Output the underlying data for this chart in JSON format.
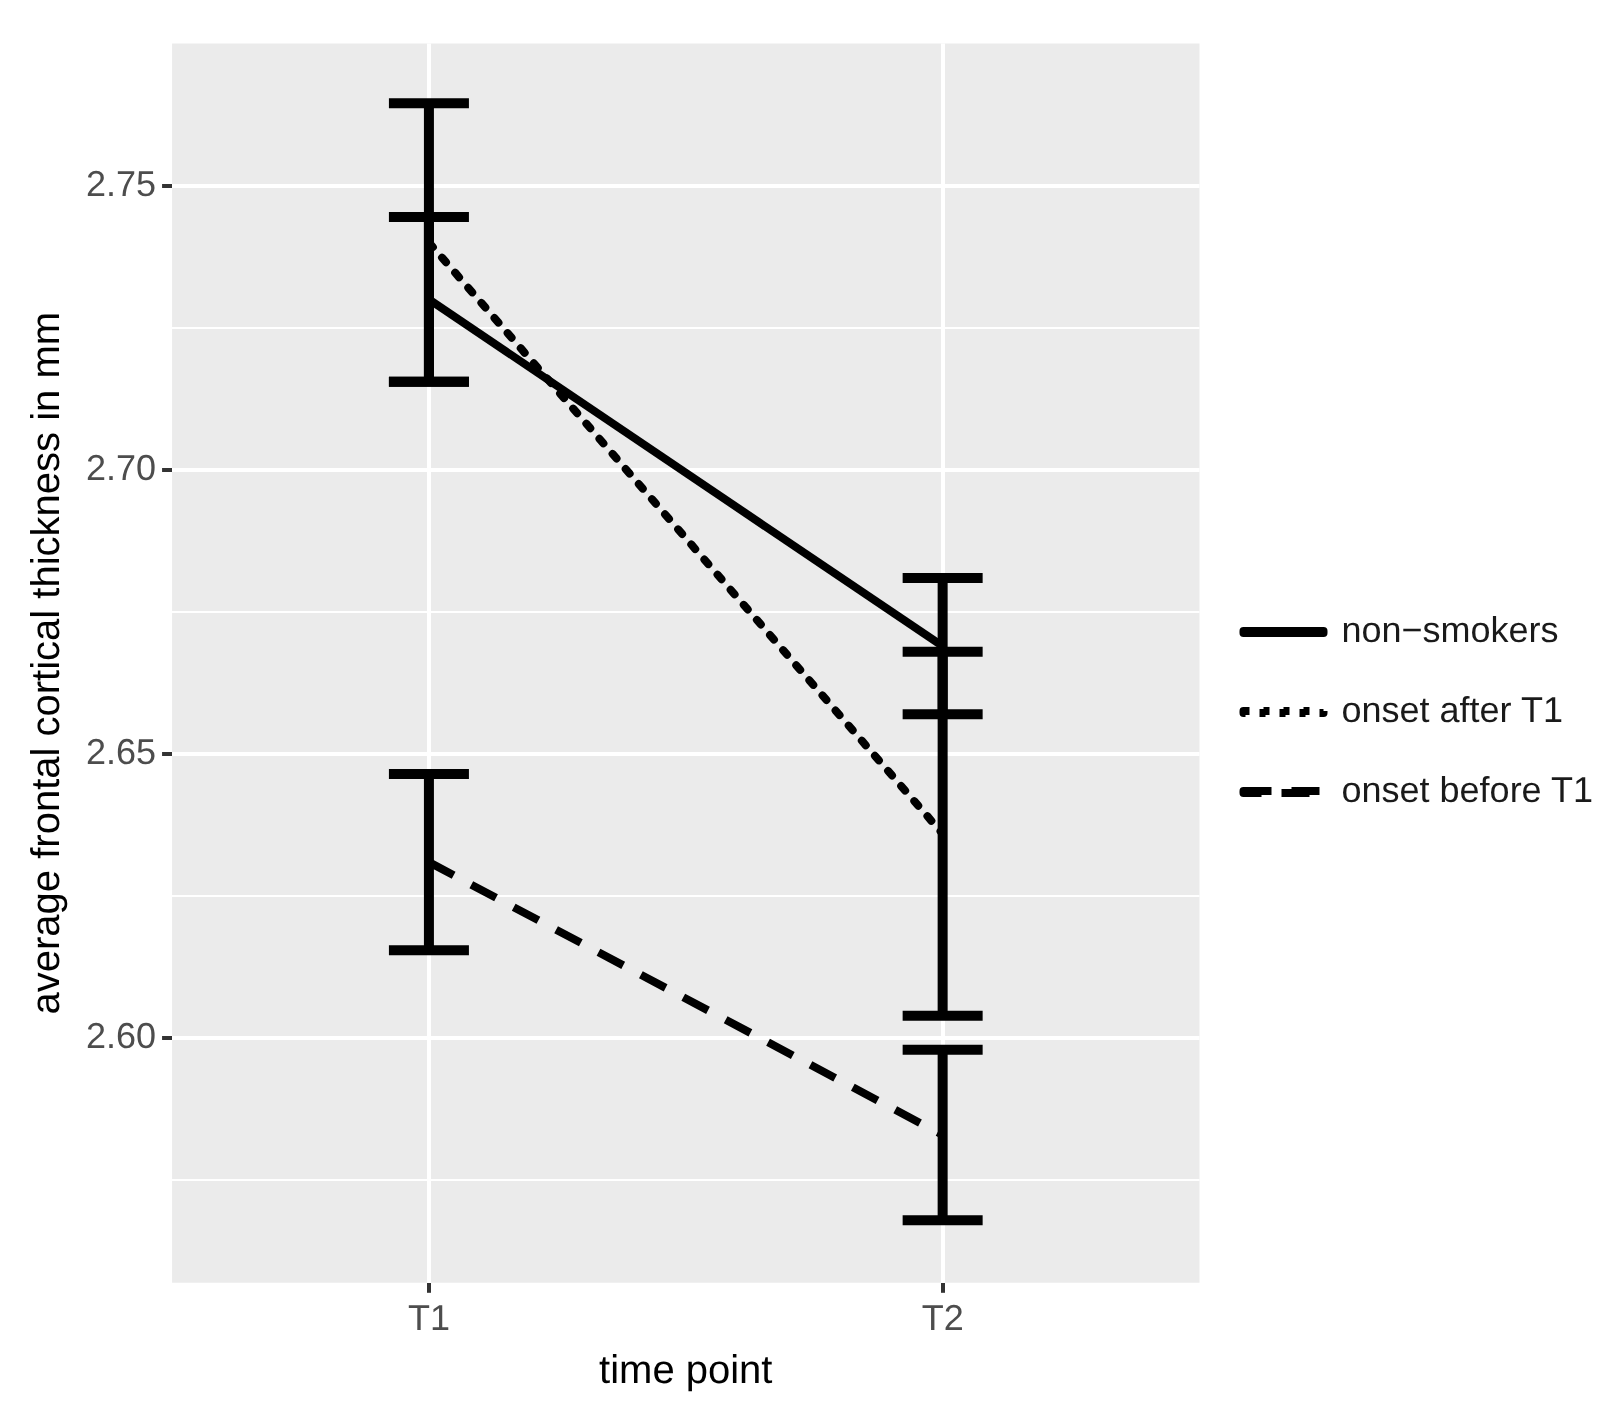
{
  "chart_data": {
    "type": "line",
    "xlabel": "time point",
    "ylabel": "average frontal cortical thickness in mm",
    "categories": [
      "T1",
      "T2"
    ],
    "series": [
      {
        "name": "non−smokers",
        "color": "#000000",
        "line_style": "solid",
        "values": [
          2.73,
          2.669
        ],
        "errors": [
          0.0145,
          0.012
        ]
      },
      {
        "name": "onset after T1",
        "color": "#000000",
        "line_style": "dotted",
        "values": [
          2.74,
          2.636
        ],
        "errors": [
          0.0245,
          0.032
        ]
      },
      {
        "name": "onset before T1",
        "color": "#000000",
        "line_style": "dashed",
        "values": [
          2.631,
          2.583
        ],
        "errors": [
          0.0155,
          0.015
        ]
      }
    ],
    "ylim": [
      2.557,
      2.775
    ],
    "yticks": [
      {
        "value": 2.575,
        "label": null
      },
      {
        "value": 2.6,
        "label": "2.60"
      },
      {
        "value": 2.625,
        "label": null
      },
      2.65,
      {
        "value": 2.675,
        "label": null
      },
      {
        "value": 2.7,
        "label": "2.70"
      },
      {
        "value": 2.725,
        "label": null
      },
      2.75
    ],
    "grid": true,
    "legend": "right",
    "marker": "none"
  }
}
